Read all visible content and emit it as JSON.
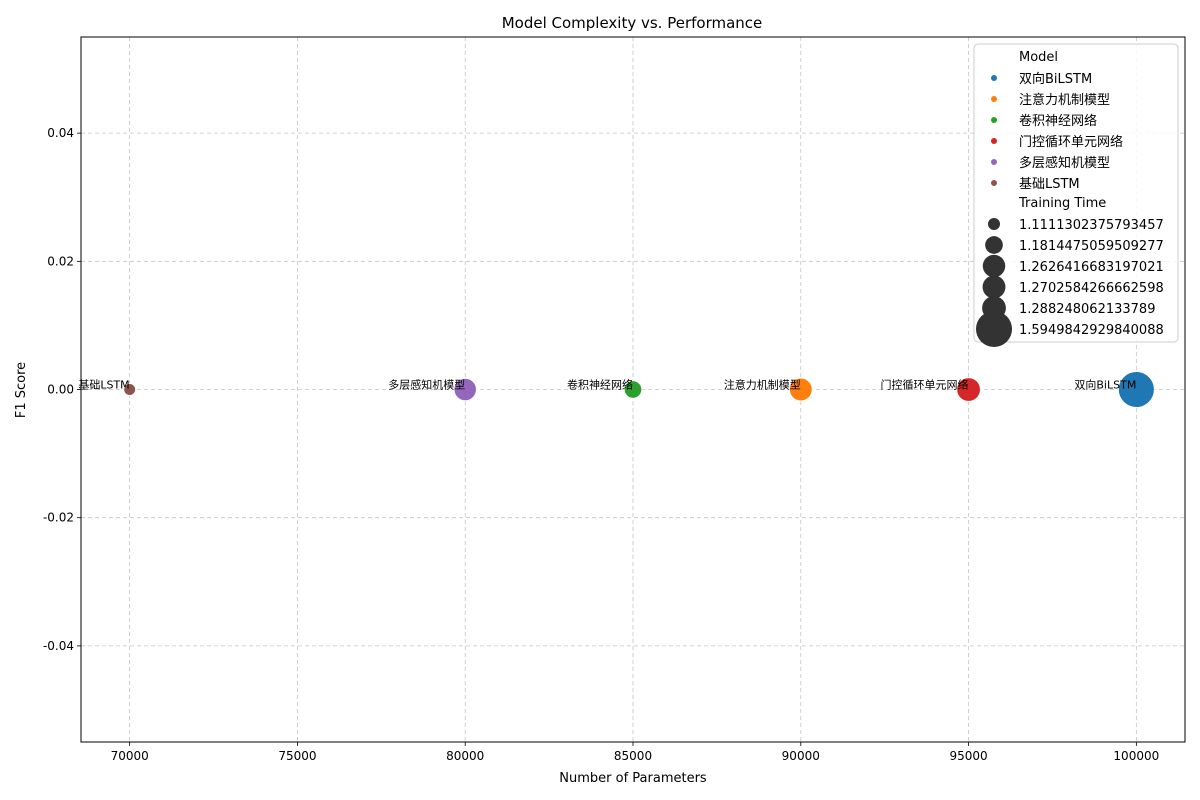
{
  "chart_data": {
    "type": "scatter",
    "title": "Model Complexity vs. Performance",
    "xlabel": "Number of Parameters",
    "ylabel": "F1 Score",
    "xlim": [
      68550,
      101450
    ],
    "ylim": [
      -0.055,
      0.055
    ],
    "xticks": [
      70000,
      75000,
      80000,
      85000,
      90000,
      95000,
      100000
    ],
    "yticks": [
      -0.04,
      -0.02,
      0.0,
      0.02,
      0.04
    ],
    "ytick_labels": [
      "-0.04",
      "-0.02",
      "0.00",
      "0.02",
      "0.04"
    ],
    "grid": true,
    "legend_position": "upper right",
    "legend": {
      "hue_title": "Model",
      "size_title": "Training Time",
      "size_entries": [
        {
          "label": "1.1111302375793457",
          "value": 1.1111302375793457
        },
        {
          "label": "1.1814475059509277",
          "value": 1.1814475059509277
        },
        {
          "label": "1.2626416683197021",
          "value": 1.2626416683197021
        },
        {
          "label": "1.2702584266662598",
          "value": 1.2702584266662598
        },
        {
          "label": "1.288248062133789",
          "value": 1.288248062133789
        },
        {
          "label": "1.5949842929840088",
          "value": 1.5949842929840088
        }
      ]
    },
    "points": [
      {
        "model": "双向BiLSTM",
        "params": 100000,
        "f1": 0.0,
        "training_time": 1.5949842929840088,
        "color": "#1f77b4"
      },
      {
        "model": "注意力机制模型",
        "params": 90000,
        "f1": 0.0,
        "training_time": 1.2702584266662598,
        "color": "#ff7f0e"
      },
      {
        "model": "卷积神经网络",
        "params": 85000,
        "f1": 0.0,
        "training_time": 1.1814475059509277,
        "color": "#2ca02c"
      },
      {
        "model": "门控循环单元网络",
        "params": 95000,
        "f1": 0.0,
        "training_time": 1.288248062133789,
        "color": "#d62728"
      },
      {
        "model": "多层感知机模型",
        "params": 80000,
        "f1": 0.0,
        "training_time": 1.2626416683197021,
        "color": "#9467bd"
      },
      {
        "model": "基础LSTM",
        "params": 70000,
        "f1": 0.0,
        "training_time": 1.1111302375793457,
        "color": "#8c564b"
      }
    ]
  }
}
